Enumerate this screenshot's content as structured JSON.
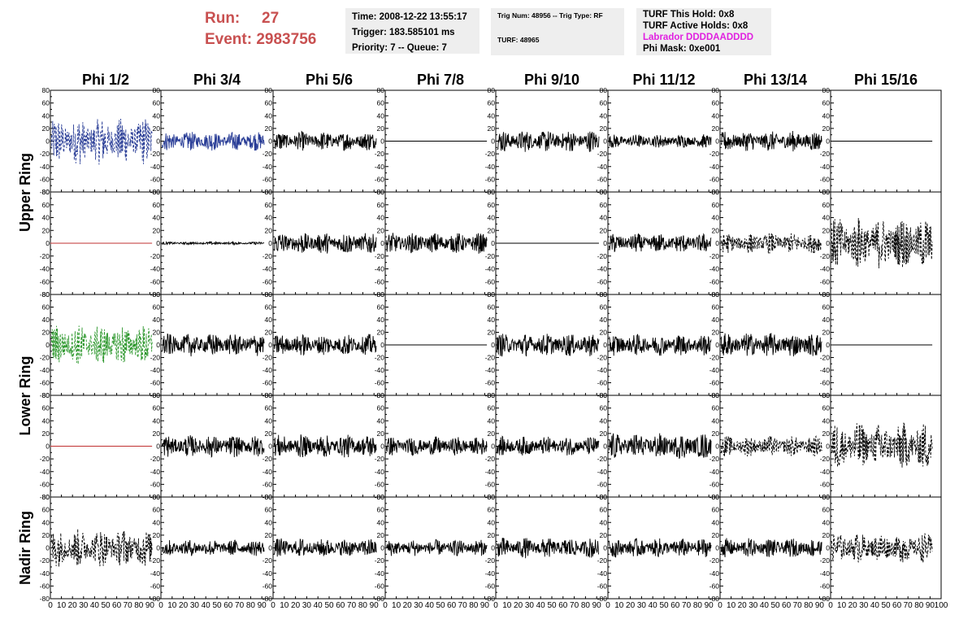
{
  "header": {
    "run_label": "Run:",
    "run_value": "27",
    "event_label": "Event:",
    "event_value": "2983756",
    "time": "Time: 2008-12-22 13:55:17",
    "trigger": "Trigger: 183.585101 ms",
    "priority": "Priority: 7 -- Queue: 7",
    "trig_num": "Trig Num: 48956 -- Trig Type: RF",
    "turf": "TURF: 48965",
    "turf_hold": "TURF This Hold: 0x8",
    "turf_active": "TURF Active Holds: 0x8",
    "labrador": "Labrador DDDDAADDDD",
    "phi_mask": "Phi Mask: 0xe001"
  },
  "chart_data": {
    "type": "line",
    "title": "",
    "columns": [
      "Phi 1/2",
      "Phi 3/4",
      "Phi 5/6",
      "Phi 7/8",
      "Phi 9/10",
      "Phi 11/12",
      "Phi 13/14",
      "Phi 15/16"
    ],
    "ring_labels": [
      "Upper Ring",
      "Lower Ring",
      "Nadir Ring"
    ],
    "xlim": [
      0,
      100
    ],
    "ylim": [
      -80,
      80
    ],
    "x_ticks": [
      0,
      10,
      20,
      30,
      40,
      50,
      60,
      70,
      80,
      90
    ],
    "y_ticks": [
      -80,
      -60,
      -40,
      -20,
      0,
      20,
      40,
      60,
      80
    ],
    "x_tick_labels": [
      "0",
      "10",
      "20",
      "30",
      "40",
      "50",
      "60",
      "70",
      "80",
      "90"
    ],
    "last_x_tick_label": "100",
    "y_tick_labels": [
      "-80",
      "-60",
      "-40",
      "-20",
      "0",
      "20",
      "40",
      "60",
      "80"
    ],
    "grid": false,
    "rows": [
      {
        "ring": "Upper Ring",
        "traces": [
          {
            "amp": 35,
            "style": "dashed",
            "color": "#283c96"
          },
          {
            "amp": 14,
            "style": "solid",
            "color": "#283c96"
          },
          {
            "amp": 14,
            "style": "solid",
            "color": "#000000"
          },
          {
            "amp": 0,
            "style": "flat",
            "color": "#000000"
          },
          {
            "amp": 16,
            "style": "solid",
            "color": "#000000"
          },
          {
            "amp": 10,
            "style": "solid",
            "color": "#000000"
          },
          {
            "amp": 15,
            "style": "solid",
            "color": "#000000"
          },
          {
            "amp": 0,
            "style": "flat",
            "color": "#000000"
          }
        ]
      },
      {
        "ring": "Upper Ring",
        "traces": [
          {
            "amp": 0,
            "style": "flat",
            "color": "#c03030"
          },
          {
            "amp": 2,
            "style": "solid",
            "color": "#000000"
          },
          {
            "amp": 16,
            "style": "solid",
            "color": "#000000"
          },
          {
            "amp": 15,
            "style": "solid",
            "color": "#000000"
          },
          {
            "amp": 0,
            "style": "flat",
            "color": "#000000"
          },
          {
            "amp": 14,
            "style": "solid",
            "color": "#000000"
          },
          {
            "amp": 15,
            "style": "dashed",
            "color": "#000000"
          },
          {
            "amp": 38,
            "style": "dashed",
            "color": "#000000"
          }
        ]
      },
      {
        "ring": "Lower Ring",
        "traces": [
          {
            "amp": 30,
            "style": "dashed",
            "color": "#2a962a"
          },
          {
            "amp": 17,
            "style": "solid",
            "color": "#000000"
          },
          {
            "amp": 16,
            "style": "solid",
            "color": "#000000"
          },
          {
            "amp": 0,
            "style": "flat",
            "color": "#000000"
          },
          {
            "amp": 17,
            "style": "solid",
            "color": "#000000"
          },
          {
            "amp": 16,
            "style": "solid",
            "color": "#000000"
          },
          {
            "amp": 18,
            "style": "solid",
            "color": "#000000"
          },
          {
            "amp": 0,
            "style": "flat",
            "color": "#000000"
          }
        ]
      },
      {
        "ring": "Lower Ring",
        "traces": [
          {
            "amp": 0,
            "style": "flat",
            "color": "#c03030"
          },
          {
            "amp": 16,
            "style": "solid",
            "color": "#000000"
          },
          {
            "amp": 17,
            "style": "solid",
            "color": "#000000"
          },
          {
            "amp": 14,
            "style": "solid",
            "color": "#000000"
          },
          {
            "amp": 14,
            "style": "solid",
            "color": "#000000"
          },
          {
            "amp": 19,
            "style": "solid",
            "color": "#000000"
          },
          {
            "amp": 15,
            "style": "dashed",
            "color": "#000000"
          },
          {
            "amp": 35,
            "style": "dashed",
            "color": "#000000"
          }
        ]
      },
      {
        "ring": "Nadir Ring",
        "traces": [
          {
            "amp": 28,
            "style": "dashed",
            "color": "#000000"
          },
          {
            "amp": 12,
            "style": "solid",
            "color": "#000000"
          },
          {
            "amp": 14,
            "style": "solid",
            "color": "#000000"
          },
          {
            "amp": 12,
            "style": "solid",
            "color": "#000000"
          },
          {
            "amp": 15,
            "style": "solid",
            "color": "#000000"
          },
          {
            "amp": 14,
            "style": "solid",
            "color": "#000000"
          },
          {
            "amp": 14,
            "style": "solid",
            "color": "#000000"
          },
          {
            "amp": 22,
            "style": "dashed",
            "color": "#000000"
          }
        ]
      }
    ]
  }
}
